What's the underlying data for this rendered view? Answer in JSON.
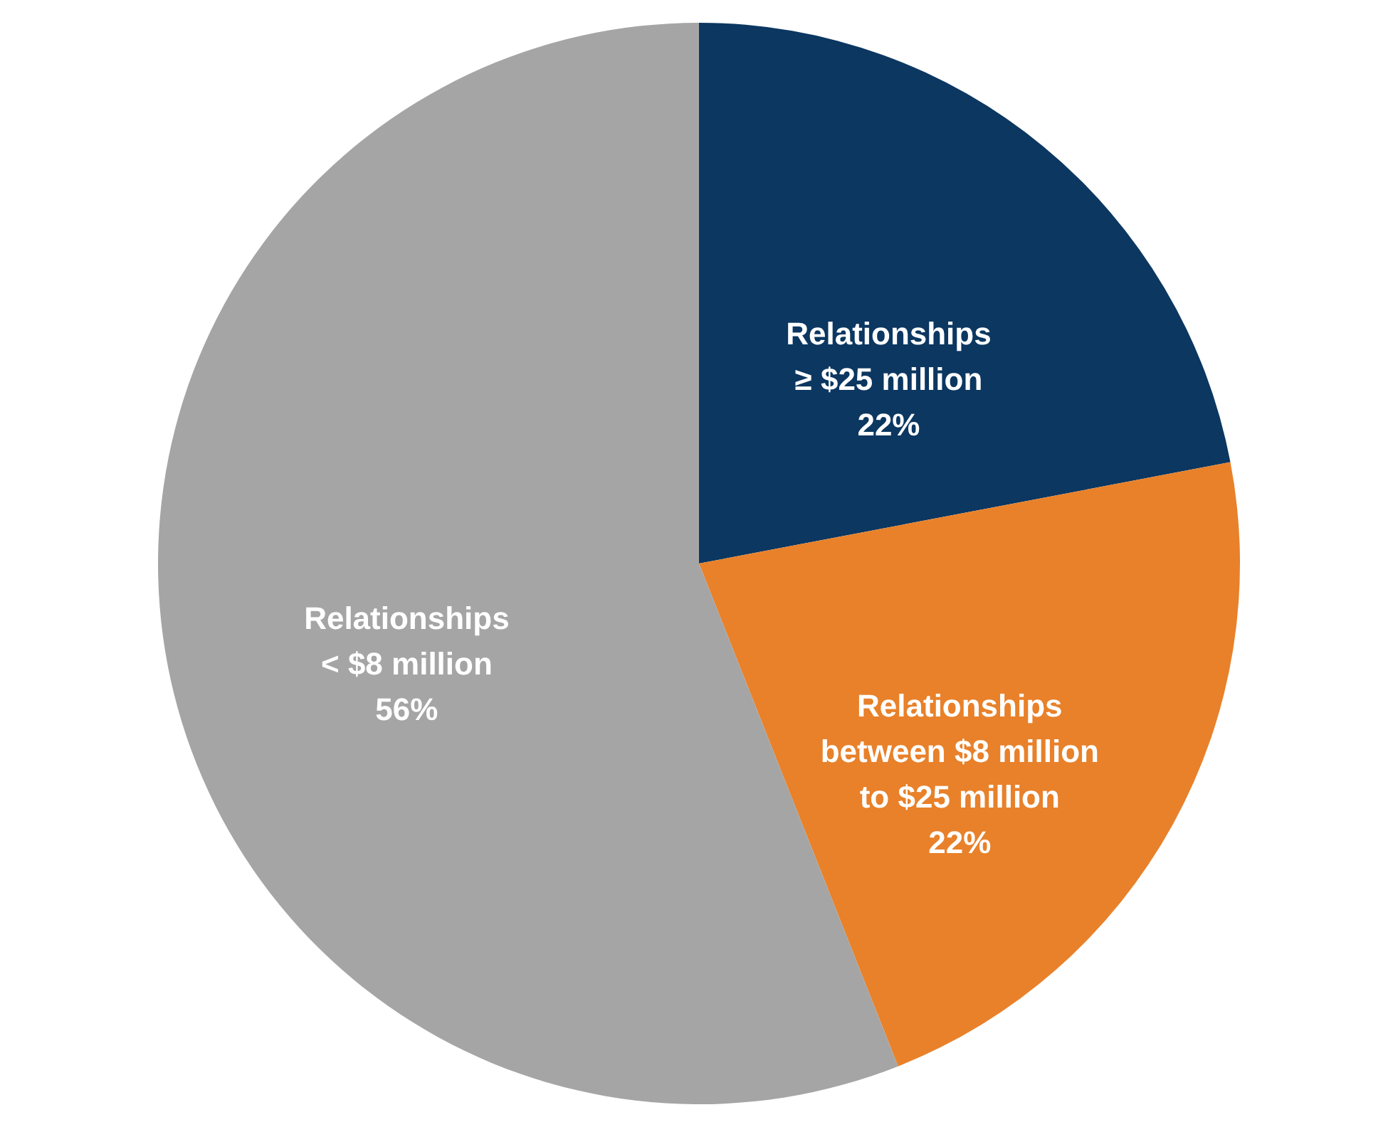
{
  "chart_data": {
    "type": "pie",
    "categories": [
      "Relationships\n≥ $25 million",
      "Relationships\nbetween $8 million\nto $25 million",
      "Relationships\n< $8 million"
    ],
    "values": [
      22,
      22,
      56
    ],
    "colors": [
      "#0b3761",
      "#e8812a",
      "#a5a5a5"
    ],
    "value_labels": [
      "22%",
      "22%",
      "56%"
    ]
  }
}
